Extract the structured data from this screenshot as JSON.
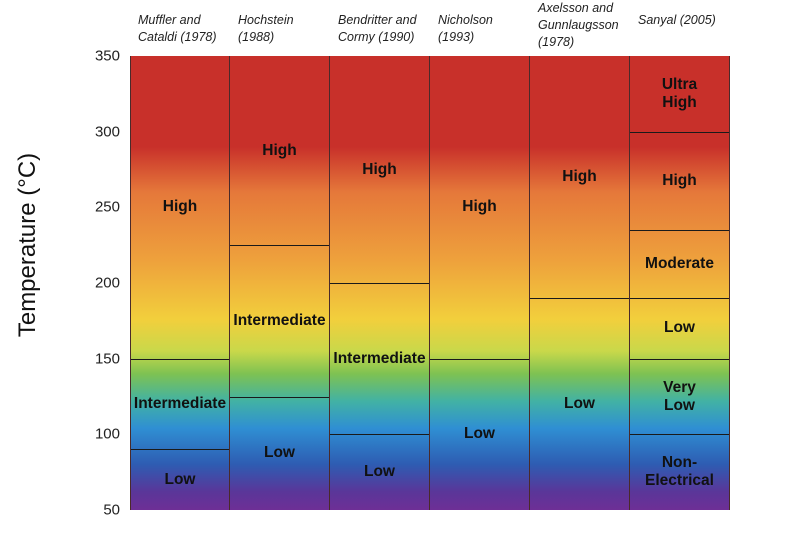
{
  "y_axis": {
    "label": "Temperature (°C)",
    "min": 50,
    "max": 350,
    "ticks": [
      "350",
      "300",
      "250",
      "200",
      "150",
      "100",
      "50"
    ]
  },
  "columns": [
    {
      "header": [
        "Muffler and",
        "Cataldi (1978)"
      ],
      "zones": [
        {
          "label": "High",
          "from": 150,
          "to": 350
        },
        {
          "label": "Intermediate",
          "from": 90,
          "to": 150
        },
        {
          "label": "Low",
          "from": 50,
          "to": 90
        }
      ]
    },
    {
      "header": [
        "Hochstein",
        "(1988)"
      ],
      "zones": [
        {
          "label": "High",
          "from": 225,
          "to": 350
        },
        {
          "label": "Intermediate",
          "from": 125,
          "to": 225
        },
        {
          "label": "Low",
          "from": 50,
          "to": 125
        }
      ]
    },
    {
      "header": [
        "Bendritter and",
        "Cormy (1990)"
      ],
      "zones": [
        {
          "label": "High",
          "from": 200,
          "to": 350
        },
        {
          "label": "Intermediate",
          "from": 100,
          "to": 200
        },
        {
          "label": "Low",
          "from": 50,
          "to": 100
        }
      ]
    },
    {
      "header": [
        "Nicholson",
        "(1993)"
      ],
      "zones": [
        {
          "label": "High",
          "from": 150,
          "to": 350
        },
        {
          "label": "Low",
          "from": 50,
          "to": 150
        }
      ]
    },
    {
      "header": [
        "Axelsson and",
        "Gunnlaugsson",
        "(1978)"
      ],
      "zones": [
        {
          "label": "High",
          "from": 190,
          "to": 350
        },
        {
          "label": "Low",
          "from": 50,
          "to": 190
        }
      ]
    },
    {
      "header": [
        "Sanyal (2005)"
      ],
      "zones": [
        {
          "label": "Ultra\nHigh",
          "from": 300,
          "to": 350
        },
        {
          "label": "High",
          "from": 235,
          "to": 300
        },
        {
          "label": "Moderate",
          "from": 190,
          "to": 235
        },
        {
          "label": "Low",
          "from": 150,
          "to": 190
        },
        {
          "label": "Very\nLow",
          "from": 100,
          "to": 150
        },
        {
          "label": "Non-\nElectrical",
          "from": 50,
          "to": 100
        }
      ]
    }
  ]
}
